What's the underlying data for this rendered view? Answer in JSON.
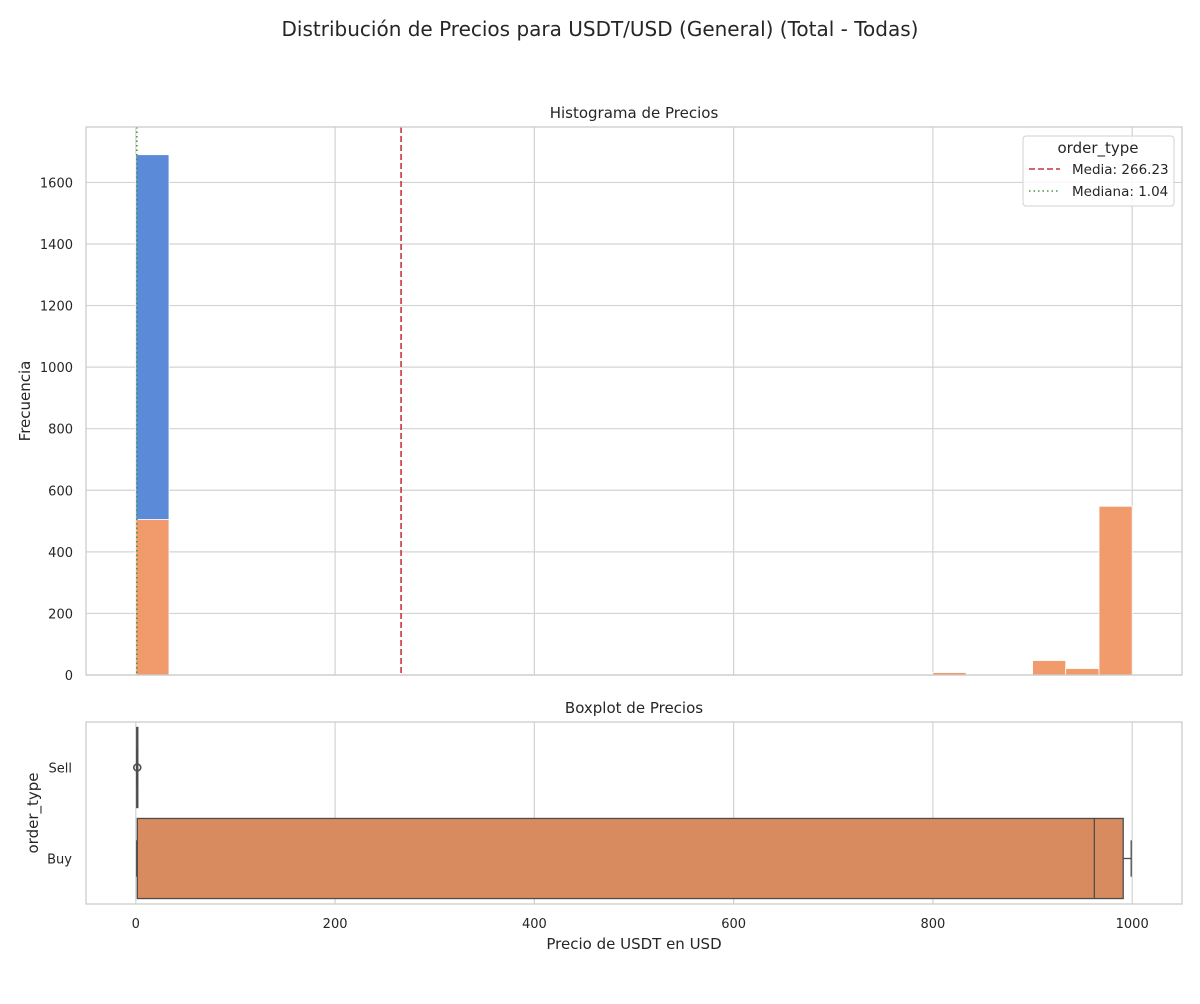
{
  "figure": {
    "title": "Distribución de Precios para USDT/USD (General) (Total - Todas)"
  },
  "chart_data": [
    {
      "type": "bar",
      "subtype": "stacked-histogram",
      "title": "Histograma de Precios",
      "xlabel": "",
      "ylabel": "Frecuencia",
      "xlim": [
        -50,
        1050
      ],
      "ylim": [
        0,
        1780
      ],
      "xticks": [
        0,
        200,
        400,
        600,
        800,
        1000
      ],
      "yticks": [
        0,
        200,
        400,
        600,
        800,
        1000,
        1200,
        1400,
        1600
      ],
      "ytick_labels": [
        "0",
        "200",
        "400",
        "600",
        "800",
        "1000",
        "1200",
        "1400",
        "1600"
      ],
      "grid": true,
      "bins": [
        {
          "x0": 0,
          "x1": 33.3,
          "buy": 505,
          "sell": 1185
        },
        {
          "x0": 800,
          "x1": 833.3,
          "buy": 8,
          "sell": 0
        },
        {
          "x0": 900,
          "x1": 933.3,
          "buy": 47,
          "sell": 0
        },
        {
          "x0": 933.3,
          "x1": 966.7,
          "buy": 21,
          "sell": 0
        },
        {
          "x0": 966.7,
          "x1": 1000,
          "buy": 548,
          "sell": 0
        }
      ],
      "series_colors": {
        "sell": "#5b8ad8",
        "buy": "#f19a6b"
      },
      "reference_lines": [
        {
          "label": "Media: 266.23",
          "value": 266.23,
          "style": "dashed",
          "color": "#c9343a"
        },
        {
          "label": "Mediana: 1.04",
          "value": 1.04,
          "style": "dotted",
          "color": "#3f9a4a"
        }
      ],
      "legend": {
        "title": "order_type",
        "position": "top-right"
      }
    },
    {
      "type": "boxplot",
      "title": "Boxplot de Precios",
      "xlabel": "Precio de USDT en USD",
      "ylabel": "order_type",
      "xlim": [
        -50,
        1050
      ],
      "xticks": [
        0,
        200,
        400,
        600,
        800,
        1000
      ],
      "xtick_labels": [
        "0",
        "200",
        "400",
        "600",
        "800",
        "1000"
      ],
      "categories": [
        "Sell",
        "Buy"
      ],
      "grid": true,
      "boxes": [
        {
          "name": "Sell",
          "whisker_low": 0.97,
          "q1": 1.0,
          "median": 1.02,
          "q3": 1.05,
          "whisker_high": 1.12,
          "outliers": [
            1.3,
            1.6
          ],
          "color": "#5b8ad8"
        },
        {
          "name": "Buy",
          "whisker_low": 0.9,
          "q1": 1.5,
          "median": 962,
          "q3": 991,
          "whisker_high": 999,
          "outliers": [],
          "color": "#d98b60"
        }
      ]
    }
  ]
}
